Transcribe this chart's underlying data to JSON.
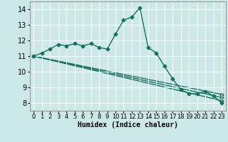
{
  "xlabel": "Humidex (Indice chaleur)",
  "xlim": [
    -0.5,
    23.5
  ],
  "ylim": [
    7.5,
    14.5
  ],
  "yticks": [
    8,
    9,
    10,
    11,
    12,
    13,
    14
  ],
  "xticks": [
    0,
    1,
    2,
    3,
    4,
    5,
    6,
    7,
    8,
    9,
    10,
    11,
    12,
    13,
    14,
    15,
    16,
    17,
    18,
    19,
    20,
    21,
    22,
    23
  ],
  "background_color": "#cde8e8",
  "grid_color": "#ffffff",
  "line_color": "#1a7060",
  "main_line": {
    "x": [
      0,
      1,
      2,
      3,
      4,
      5,
      6,
      7,
      8,
      9,
      10,
      11,
      12,
      13,
      14,
      15,
      16,
      17,
      18,
      19,
      20,
      21,
      22,
      23
    ],
    "y": [
      11.0,
      11.2,
      11.45,
      11.75,
      11.65,
      11.8,
      11.65,
      11.8,
      11.55,
      11.45,
      12.4,
      13.3,
      13.5,
      14.1,
      11.55,
      11.2,
      10.35,
      9.55,
      8.85,
      8.6,
      8.6,
      8.75,
      8.45,
      8.0
    ]
  },
  "trend_lines": [
    {
      "x": [
        0,
        23
      ],
      "y": [
        11.0,
        8.55
      ]
    },
    {
      "x": [
        0,
        23
      ],
      "y": [
        11.0,
        8.35
      ]
    },
    {
      "x": [
        0,
        23
      ],
      "y": [
        11.0,
        8.15
      ]
    }
  ],
  "marker": "D",
  "marker_size": 2.5,
  "line_width": 1.0,
  "font_size": 7,
  "tick_font_size": 6
}
